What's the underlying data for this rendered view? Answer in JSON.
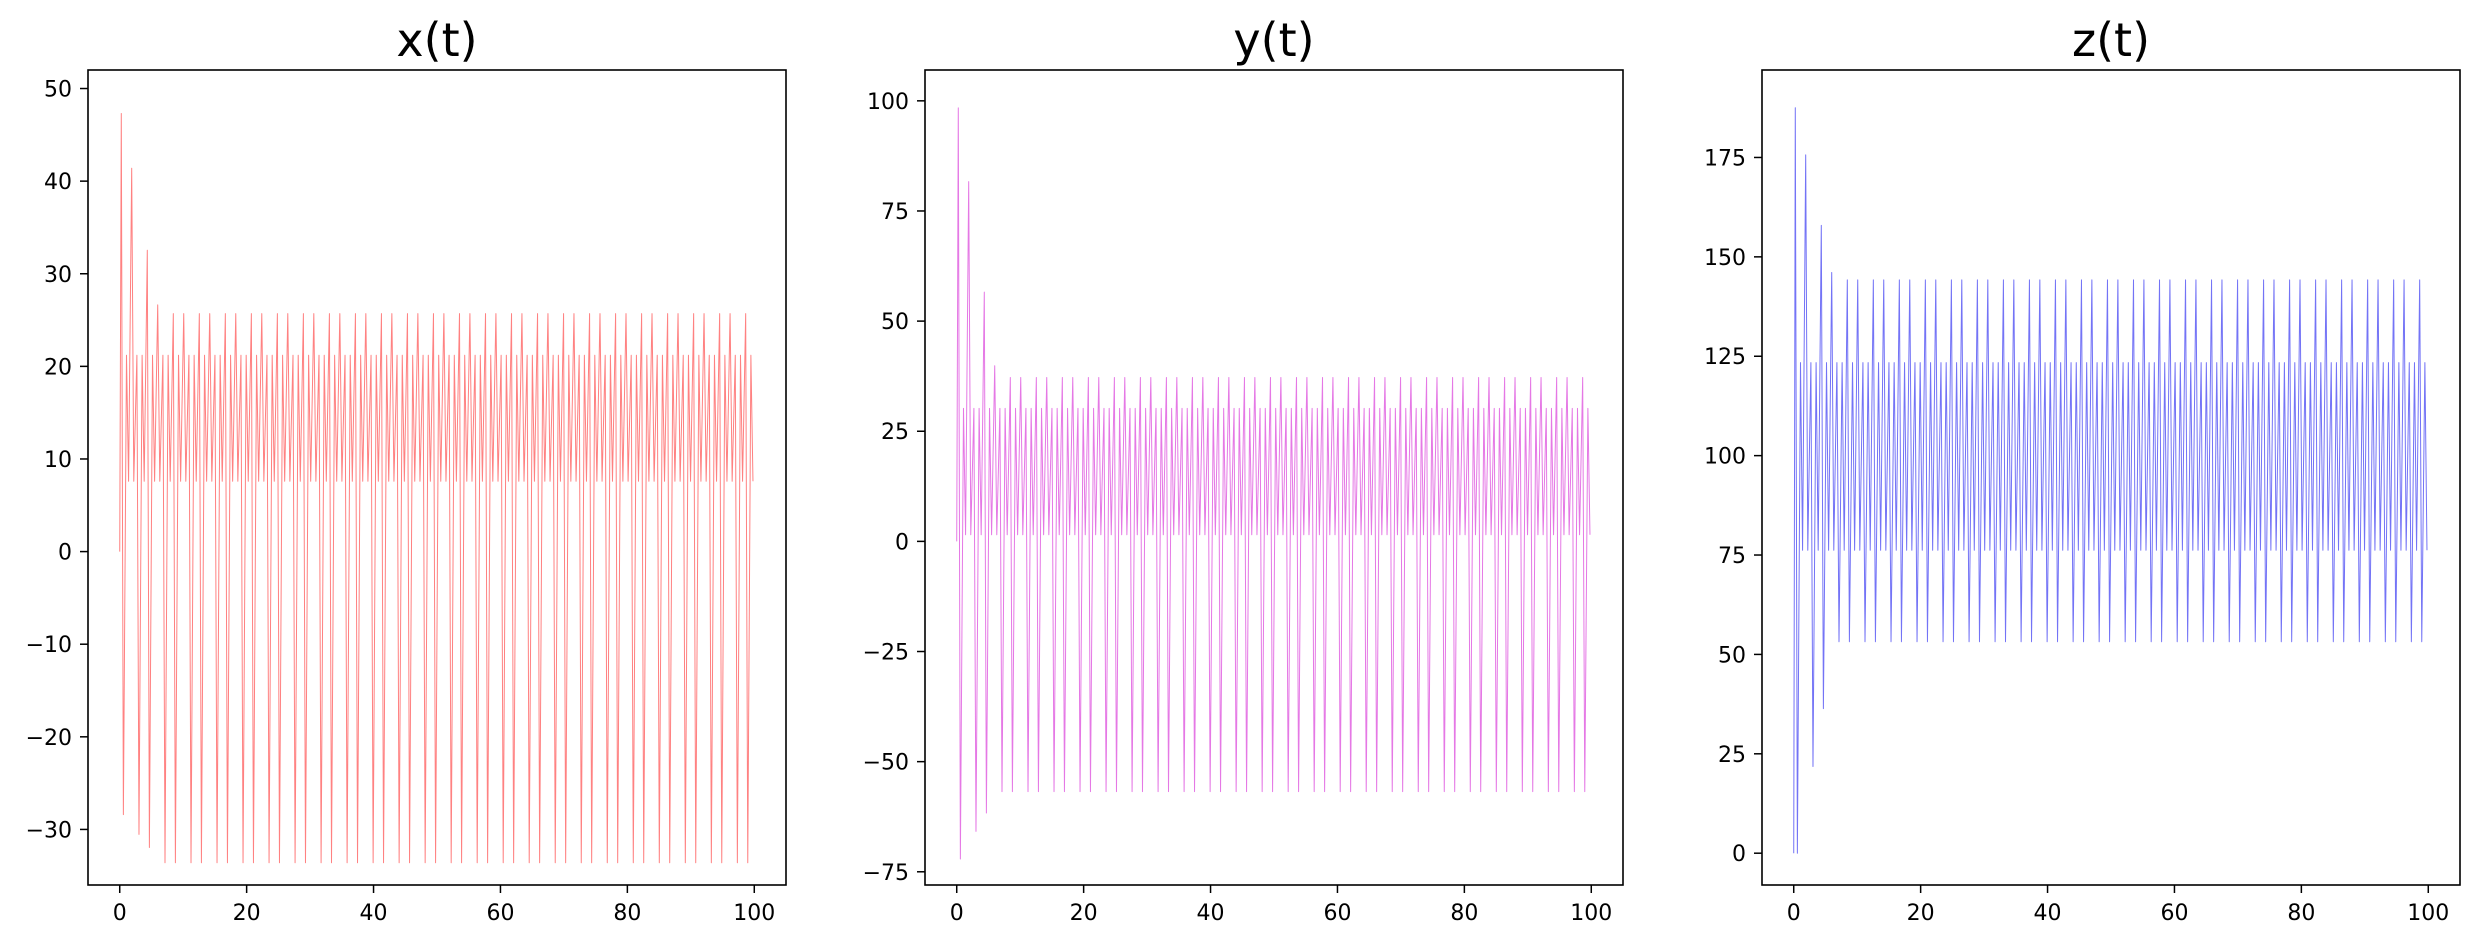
{
  "chart_data": [
    {
      "type": "line",
      "title": "x(t)",
      "xlabel": "",
      "ylabel": "",
      "xlim": [
        -5,
        105
      ],
      "ylim": [
        -36,
        52
      ],
      "xticks": [
        0,
        20,
        40,
        60,
        80,
        100
      ],
      "yticks": [
        -30,
        -20,
        -10,
        0,
        10,
        20,
        30,
        40,
        50
      ],
      "grid": false,
      "color": "#ff6b6b",
      "series": [
        {
          "oscillation": {
            "t_start": 0,
            "t_end": 100,
            "initial_peak": 47.3,
            "initial_trough": -28.4,
            "steady_peak": 25.7,
            "steady_trough": -33.6,
            "upper_band": [
              7.6,
              21.2
            ],
            "period": 0.82
          }
        }
      ]
    },
    {
      "type": "line",
      "title": "y(t)",
      "xlabel": "",
      "ylabel": "",
      "xlim": [
        -5,
        105
      ],
      "ylim": [
        -78,
        107
      ],
      "xticks": [
        0,
        20,
        40,
        60,
        80,
        100
      ],
      "yticks": [
        -75,
        -50,
        -25,
        0,
        25,
        50,
        75,
        100
      ],
      "grid": false,
      "color": "#e060e0",
      "series": [
        {
          "oscillation": {
            "t_start": 0,
            "t_end": 100,
            "initial_peak": 98.4,
            "initial_trough": -72.1,
            "steady_peak": 37.2,
            "steady_trough": -56.8,
            "upper_band": [
              1.5,
              30.2
            ],
            "period": 0.82
          }
        }
      ]
    },
    {
      "type": "line",
      "title": "z(t)",
      "xlabel": "",
      "ylabel": "",
      "xlim": [
        -5,
        105
      ],
      "ylim": [
        -8,
        197
      ],
      "xticks": [
        0,
        20,
        40,
        60,
        80,
        100
      ],
      "yticks": [
        0,
        25,
        50,
        75,
        100,
        125,
        150,
        175
      ],
      "grid": false,
      "color": "#5a5af5",
      "series": [
        {
          "oscillation": {
            "t_start": 0,
            "t_end": 100,
            "initial_peak": 187.5,
            "initial_trough": 0,
            "steady_peak": 144.2,
            "steady_trough": 53.2,
            "upper_band": [
              76.2,
              123.4
            ],
            "period": 0.82
          }
        }
      ]
    }
  ]
}
